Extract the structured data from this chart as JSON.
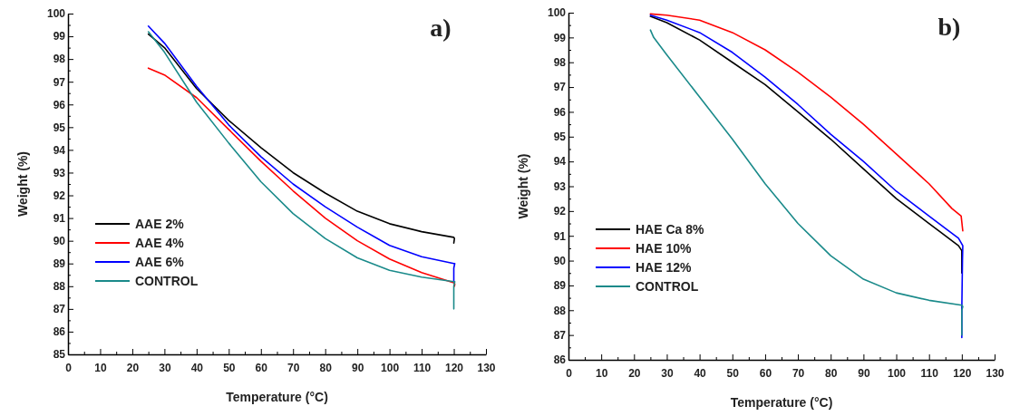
{
  "chart_data": [
    {
      "type": "line",
      "title": "a)",
      "xlabel": "Temperature (°C)",
      "ylabel": "Weight (%)",
      "xlim": [
        0,
        130
      ],
      "ylim": [
        85,
        100
      ],
      "xticks": [
        0,
        {
          "value": 5,
          "label": null
        },
        10,
        {
          "value": 15,
          "label": null
        },
        20,
        {
          "value": 25,
          "label": null
        },
        30,
        {
          "value": 35,
          "label": null
        },
        40,
        {
          "value": 45,
          "label": null
        },
        50,
        {
          "value": 55,
          "label": null
        },
        60,
        {
          "value": 65,
          "label": null
        },
        70,
        {
          "value": 75,
          "label": null
        },
        80,
        {
          "value": 85,
          "label": null
        },
        90,
        {
          "value": 95,
          "label": null
        },
        100,
        {
          "value": 105,
          "label": null
        },
        110,
        {
          "value": 115,
          "label": null
        },
        120,
        {
          "value": 125,
          "label": null
        },
        130
      ],
      "yticks": [
        85,
        {
          "value": 85.5,
          "label": null
        },
        86,
        {
          "value": 86.5,
          "label": null
        },
        87,
        {
          "value": 87.5,
          "label": null
        },
        88,
        {
          "value": 88.5,
          "label": null
        },
        89,
        {
          "value": 89.5,
          "label": null
        },
        90,
        {
          "value": 90.5,
          "label": null
        },
        91,
        {
          "value": 91.5,
          "label": null
        },
        92,
        {
          "value": 92.5,
          "label": null
        },
        93,
        {
          "value": 93.5,
          "label": null
        },
        94,
        {
          "value": 94.5,
          "label": null
        },
        95,
        {
          "value": 95.5,
          "label": null
        },
        96,
        {
          "value": 96.5,
          "label": null
        },
        97,
        {
          "value": 97.5,
          "label": null
        },
        98,
        {
          "value": 98.5,
          "label": null
        },
        99,
        {
          "value": 99.5,
          "label": null
        },
        100
      ],
      "legend": "bottom left",
      "grid": false,
      "marker": "none",
      "line_style": "solid",
      "series": [
        {
          "name": "AAE 2%",
          "color": "#000000",
          "x": [
            25,
            30,
            40,
            50,
            60,
            70,
            80,
            90,
            100,
            110,
            120,
            120.2,
            120
          ],
          "values": [
            99.1,
            98.5,
            96.7,
            95.3,
            94.1,
            93.0,
            92.1,
            91.3,
            90.75,
            90.4,
            90.15,
            90.1,
            89.9
          ]
        },
        {
          "name": "AAE 4%",
          "color": "#ff0000",
          "x": [
            25,
            30,
            40,
            50,
            60,
            70,
            80,
            90,
            100,
            110,
            120,
            120.3,
            120.2
          ],
          "values": [
            97.6,
            97.3,
            96.3,
            94.9,
            93.5,
            92.2,
            91.0,
            90.0,
            89.2,
            88.6,
            88.15,
            88.1,
            88.0
          ]
        },
        {
          "name": "AAE 6%",
          "color": "#0000ff",
          "x": [
            25,
            30,
            40,
            50,
            60,
            70,
            80,
            90,
            100,
            110,
            120,
            120.3,
            120,
            120
          ],
          "values": [
            99.45,
            98.7,
            96.8,
            95.1,
            93.7,
            92.5,
            91.5,
            90.6,
            89.8,
            89.3,
            89.0,
            89.0,
            88.8,
            88.2
          ]
        },
        {
          "name": "CONTROL",
          "color": "#1a8a8a",
          "x": [
            25,
            30,
            40,
            50,
            60,
            70,
            80,
            90,
            100,
            110,
            120,
            120.3,
            120,
            120
          ],
          "values": [
            99.2,
            98.3,
            96.1,
            94.3,
            92.6,
            91.2,
            90.1,
            89.25,
            88.7,
            88.4,
            88.2,
            88.2,
            88.0,
            87.0
          ]
        }
      ]
    },
    {
      "type": "line",
      "title": "b)",
      "xlabel": "Temperature (°C)",
      "ylabel": "Weight (%)",
      "xlim": [
        0,
        130
      ],
      "ylim": [
        86,
        100
      ],
      "xticks": [
        0,
        {
          "value": 5,
          "label": null
        },
        10,
        {
          "value": 15,
          "label": null
        },
        20,
        {
          "value": 25,
          "label": null
        },
        30,
        {
          "value": 35,
          "label": null
        },
        40,
        {
          "value": 45,
          "label": null
        },
        50,
        {
          "value": 55,
          "label": null
        },
        60,
        {
          "value": 65,
          "label": null
        },
        70,
        {
          "value": 75,
          "label": null
        },
        80,
        {
          "value": 85,
          "label": null
        },
        90,
        {
          "value": 95,
          "label": null
        },
        100,
        {
          "value": 105,
          "label": null
        },
        110,
        {
          "value": 115,
          "label": null
        },
        120,
        {
          "value": 125,
          "label": null
        },
        130
      ],
      "yticks": [
        86,
        {
          "value": 86.5,
          "label": null
        },
        87,
        {
          "value": 87.5,
          "label": null
        },
        88,
        {
          "value": 88.5,
          "label": null
        },
        89,
        {
          "value": 89.5,
          "label": null
        },
        90,
        {
          "value": 90.5,
          "label": null
        },
        91,
        {
          "value": 91.5,
          "label": null
        },
        92,
        {
          "value": 92.5,
          "label": null
        },
        93,
        {
          "value": 93.5,
          "label": null
        },
        94,
        {
          "value": 94.5,
          "label": null
        },
        95,
        {
          "value": 95.5,
          "label": null
        },
        96,
        {
          "value": 96.5,
          "label": null
        },
        97,
        {
          "value": 97.5,
          "label": null
        },
        98,
        {
          "value": 98.5,
          "label": null
        },
        99,
        {
          "value": 99.5,
          "label": null
        },
        100
      ],
      "legend": "bottom left",
      "grid": false,
      "marker": "none",
      "line_style": "solid",
      "series": [
        {
          "name": "HAE Ca 8%",
          "color": "#000000",
          "x": [
            25,
            30,
            40,
            50,
            60,
            70,
            80,
            90,
            100,
            110,
            119,
            120,
            120
          ],
          "values": [
            99.85,
            99.6,
            98.9,
            98.0,
            97.1,
            96.0,
            94.9,
            93.7,
            92.5,
            91.5,
            90.6,
            90.4,
            89.5
          ]
        },
        {
          "name": "HAE 10%",
          "color": "#ff0000",
          "x": [
            25,
            30,
            40,
            50,
            60,
            70,
            80,
            90,
            100,
            110,
            117,
            119.8,
            120.3
          ],
          "values": [
            99.95,
            99.9,
            99.7,
            99.2,
            98.5,
            97.6,
            96.6,
            95.5,
            94.3,
            93.1,
            92.1,
            91.8,
            91.2
          ]
        },
        {
          "name": "HAE 12%",
          "color": "#0000ff",
          "x": [
            25,
            30,
            40,
            50,
            60,
            70,
            80,
            90,
            100,
            110,
            119,
            120.3,
            120.2,
            120,
            120
          ],
          "values": [
            99.9,
            99.7,
            99.2,
            98.4,
            97.4,
            96.3,
            95.1,
            94.0,
            92.8,
            91.8,
            90.9,
            90.6,
            90.0,
            88.0,
            86.9
          ]
        },
        {
          "name": "CONTROL",
          "color": "#1a8a8a",
          "x": [
            25,
            26,
            30,
            40,
            50,
            60,
            70,
            80,
            90,
            100,
            110,
            120,
            120.3,
            120,
            120
          ],
          "values": [
            99.3,
            99.0,
            98.3,
            96.6,
            94.9,
            93.1,
            91.5,
            90.2,
            89.25,
            88.7,
            88.4,
            88.2,
            88.15,
            88.0,
            87.0
          ]
        }
      ]
    }
  ]
}
